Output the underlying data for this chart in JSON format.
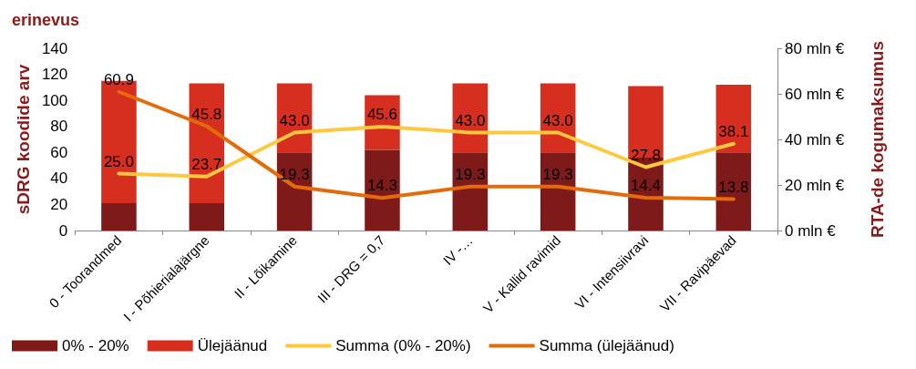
{
  "chart_data": {
    "type": "bar",
    "title": "erinevus",
    "ylabel": "sDRG koodide arv",
    "y2label": "RTA-de kogumaksumus",
    "categories": [
      "0 - Toorandmed",
      "I - Põhierialajärgne",
      "II - Lõikamine",
      "III - DRG = 0,7",
      "IV -…",
      "V - Kallid ravimid",
      "VI - Intensiivravi",
      "VII - Ravipäevad"
    ],
    "stacked": true,
    "series": [
      {
        "name": "0% - 20%",
        "color": "#7f1a1a",
        "values": [
          21,
          21,
          60,
          62,
          60,
          60,
          56,
          60
        ]
      },
      {
        "name": "Ülejäänud",
        "color": "#d62e1f",
        "values": [
          94,
          92,
          53,
          42,
          53,
          53,
          55,
          52
        ]
      },
      {
        "name": "Summa (0% - 20%)",
        "type": "line",
        "axis": "y2",
        "color": "#ffc83d",
        "values": [
          25.0,
          23.7,
          43.0,
          45.6,
          43.0,
          43.0,
          27.8,
          38.1
        ],
        "value_labels": [
          "25.0",
          "23.7",
          "43.0",
          "45.6",
          "43.0",
          "43.0",
          "27.8",
          "38.1"
        ]
      },
      {
        "name": "Summa (ülejäänud)",
        "type": "line",
        "axis": "y2",
        "color": "#e36c0a",
        "values": [
          60.9,
          45.8,
          19.3,
          14.3,
          19.3,
          19.3,
          14.4,
          13.8
        ],
        "value_labels": [
          "60.9",
          "45.8",
          "19.3",
          "14.3",
          "19.3",
          "19.3",
          "14.4",
          "13.8"
        ]
      }
    ],
    "ylim": [
      0,
      140
    ],
    "yticks": [
      0,
      20,
      40,
      60,
      80,
      100,
      120,
      140
    ],
    "y2lim": [
      0,
      80
    ],
    "y2ticks": [
      {
        "value": 0,
        "label": "0 mln €"
      },
      {
        "value": 20,
        "label": "20 mln €"
      },
      {
        "value": 40,
        "label": "40 mln €"
      },
      {
        "value": 60,
        "label": "60 mln €"
      },
      {
        "value": 80,
        "label": "80 mln €"
      }
    ],
    "grid": false,
    "legend": "bottom",
    "marker": "none"
  }
}
